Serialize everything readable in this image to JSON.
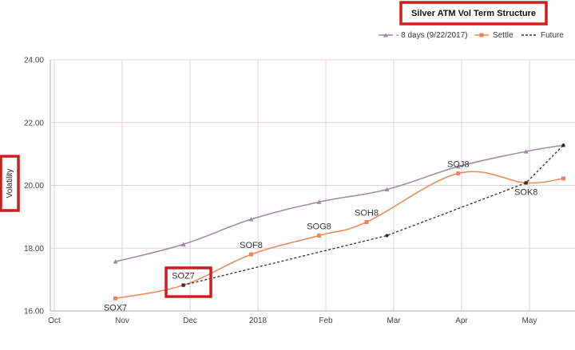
{
  "chart_data": {
    "type": "line",
    "title": "Silver ATM Vol Term Structure",
    "ylabel": "Volatility",
    "xlabel": "",
    "ylim": [
      16,
      24
    ],
    "yticks": [
      "16.00",
      "18.00",
      "20.00",
      "22.00",
      "24.00"
    ],
    "x_ticks": [
      "Oct",
      "Nov",
      "Dec",
      "2018",
      "Feb",
      "Mar",
      "Apr",
      "May"
    ],
    "grid": true,
    "legend_position": "top-right",
    "colors": {
      "minus8": "#9a8c9c",
      "settle": "#e8875a",
      "future": "#2b2b35",
      "highlight": "#cc1f1f",
      "grid": "#dcd2dc"
    },
    "series": [
      {
        "name": "- 8 days (9/22/2017)",
        "style": "solid",
        "x": [
          0.9,
          1.9,
          2.9,
          3.9,
          4.9,
          5.95,
          6.95,
          7.5
        ],
        "y": [
          17.57,
          18.12,
          18.92,
          19.47,
          19.87,
          20.6,
          21.08,
          21.28
        ]
      },
      {
        "name": "Settle",
        "style": "solid",
        "x": [
          0.9,
          1.9,
          2.9,
          3.9,
          4.6,
          5.95,
          6.95,
          7.5
        ],
        "y": [
          16.4,
          16.82,
          17.8,
          18.4,
          18.83,
          20.38,
          20.08,
          20.22
        ]
      },
      {
        "name": "Future",
        "style": "dashed",
        "x": [
          1.9,
          4.9,
          6.95,
          7.5
        ],
        "y": [
          16.82,
          18.4,
          20.08,
          21.28
        ]
      }
    ],
    "point_labels": [
      {
        "text": "SOX7",
        "x": 0.9,
        "y": 16.4,
        "pos": "below"
      },
      {
        "text": "SOZ7",
        "x": 1.9,
        "y": 16.82,
        "pos": "above"
      },
      {
        "text": "SOF8",
        "x": 2.9,
        "y": 17.8,
        "pos": "above"
      },
      {
        "text": "SOG8",
        "x": 3.9,
        "y": 18.4,
        "pos": "above"
      },
      {
        "text": "SOH8",
        "x": 4.6,
        "y": 18.83,
        "pos": "above"
      },
      {
        "text": "SOJ8",
        "x": 5.95,
        "y": 20.38,
        "pos": "above"
      },
      {
        "text": "SOK8",
        "x": 6.95,
        "y": 20.08,
        "pos": "below"
      }
    ],
    "highlighted": [
      "title",
      "ylabel",
      "SOZ7"
    ]
  }
}
